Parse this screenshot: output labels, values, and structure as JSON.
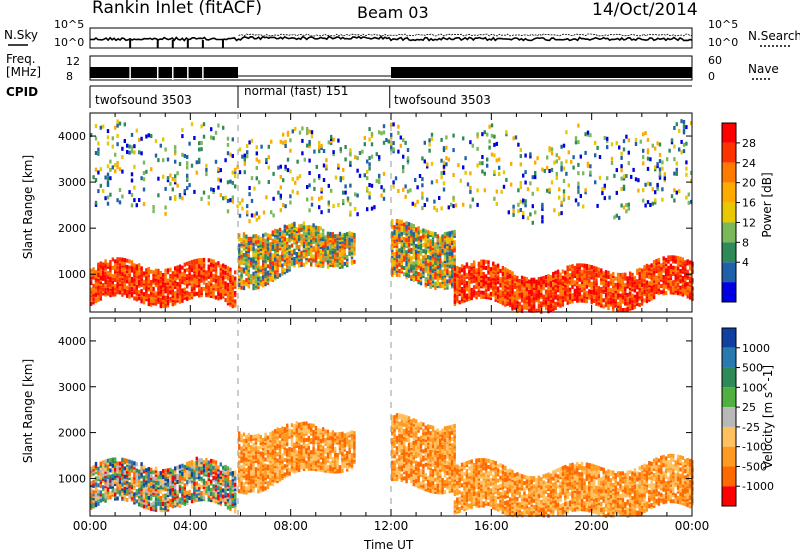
{
  "header": {
    "station": "Rankin Inlet (fitACF)",
    "beam": "Beam 03",
    "date": "14/Oct/2014"
  },
  "summary": {
    "left_labels": {
      "nsky": "N.Sky",
      "freq": "Freq.",
      "freq_unit": "[MHz]",
      "cpid": "CPID"
    },
    "right_labels": {
      "nsearch": "N.Search",
      "nave": "Nave"
    },
    "noise_ticks_left": [
      "10^5",
      "10^0"
    ],
    "noise_ticks_right": [
      "10^5",
      "10^0"
    ],
    "freq_ticks": [
      "12",
      "8"
    ],
    "nave_ticks": [
      "60",
      "0"
    ],
    "cpid_segments": [
      {
        "label": "twofsound 3503",
        "start_hour": 0.0,
        "end_hour": 5.9
      },
      {
        "label": "normal (fast) 151",
        "start_hour": 5.9,
        "end_hour": 11.95
      },
      {
        "label": "twofsound 3503",
        "start_hour": 11.95,
        "end_hour": 24.0
      }
    ]
  },
  "chart_data": [
    {
      "type": "heatmap",
      "title": "",
      "xlabel": "",
      "ylabel": "Slant Range [km]",
      "xlim": [
        0,
        24
      ],
      "ylim": [
        180,
        4500
      ],
      "yticks": [
        "1000",
        "2000",
        "3000",
        "4000"
      ],
      "colorbar": {
        "label": "Power [dB]",
        "ticks": [
          "28",
          "24",
          "20",
          "16",
          "12",
          "8",
          "4"
        ],
        "colors": [
          "#ff0000",
          "#ff3300",
          "#ff7a00",
          "#ffaa00",
          "#e8c800",
          "#7ab85a",
          "#2e8b57",
          "#2060a8",
          "#0000e0"
        ]
      },
      "bands": [
        {
          "start_hour": 0.0,
          "end_hour": 5.8,
          "range_low": 400,
          "range_high": 1200,
          "level": "high"
        },
        {
          "start_hour": 5.9,
          "end_hour": 10.5,
          "range_low": 900,
          "range_high": 2100,
          "level": "mid"
        },
        {
          "start_hour": 12.0,
          "end_hour": 14.5,
          "range_low": 800,
          "range_high": 2000,
          "level": "mid"
        },
        {
          "start_hour": 14.5,
          "end_hour": 24.0,
          "range_low": 400,
          "range_high": 1200,
          "level": "high"
        },
        {
          "start_hour": 0.0,
          "end_hour": 24.0,
          "range_low": 2400,
          "range_high": 4200,
          "level": "sparse"
        }
      ]
    },
    {
      "type": "heatmap",
      "title": "",
      "xlabel": "Time UT",
      "ylabel": "Slant Range [km]",
      "xlim": [
        0,
        24
      ],
      "ylim": [
        180,
        4500
      ],
      "xticks": [
        "00:00",
        "04:00",
        "08:00",
        "12:00",
        "16:00",
        "20:00",
        "00:00"
      ],
      "yticks": [
        "1000",
        "2000",
        "3000",
        "4000"
      ],
      "colorbar": {
        "label": "Velocity [m s^-1]",
        "ticks": [
          "1000",
          "500",
          "100",
          "25",
          "-25",
          "-100",
          "-500",
          "-1000"
        ],
        "colors": [
          "#1040a0",
          "#2a7ab0",
          "#2e8b57",
          "#50b040",
          "#b8b8b8",
          "#ffc060",
          "#ff9a20",
          "#ff6a00",
          "#ff0000"
        ]
      },
      "bands": [
        {
          "start_hour": 0.0,
          "end_hour": 5.8,
          "range_low": 400,
          "range_high": 1300,
          "level": "mixed"
        },
        {
          "start_hour": 5.9,
          "end_hour": 10.5,
          "range_low": 900,
          "range_high": 2200,
          "level": "negative"
        },
        {
          "start_hour": 12.0,
          "end_hour": 14.5,
          "range_low": 800,
          "range_high": 2200,
          "level": "negative"
        },
        {
          "start_hour": 14.5,
          "end_hour": 24.0,
          "range_low": 300,
          "range_high": 1300,
          "level": "negative"
        }
      ]
    }
  ]
}
